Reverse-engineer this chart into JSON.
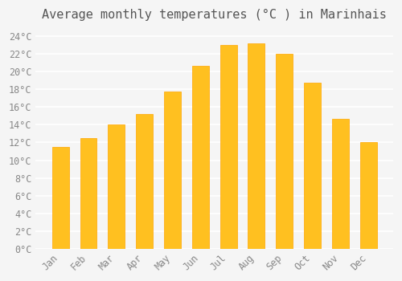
{
  "title": "Average monthly temperatures (°C ) in Marinhais",
  "months": [
    "Jan",
    "Feb",
    "Mar",
    "Apr",
    "May",
    "Jun",
    "Jul",
    "Aug",
    "Sep",
    "Oct",
    "Nov",
    "Dec"
  ],
  "values": [
    11.5,
    12.5,
    14.0,
    15.2,
    17.8,
    20.7,
    23.0,
    23.2,
    22.0,
    18.8,
    14.7,
    12.0
  ],
  "bar_color_face": "#FFC020",
  "bar_color_edge": "#FFA500",
  "bar_width": 0.6,
  "ylim": [
    0,
    25
  ],
  "yticks": [
    0,
    2,
    4,
    6,
    8,
    10,
    12,
    14,
    16,
    18,
    20,
    22,
    24
  ],
  "ytick_labels": [
    "0°C",
    "2°C",
    "4°C",
    "6°C",
    "8°C",
    "10°C",
    "12°C",
    "14°C",
    "16°C",
    "18°C",
    "20°C",
    "22°C",
    "24°C"
  ],
  "background_color": "#f5f5f5",
  "grid_color": "#ffffff",
  "title_fontsize": 11,
  "tick_fontsize": 8.5,
  "font_family": "monospace"
}
